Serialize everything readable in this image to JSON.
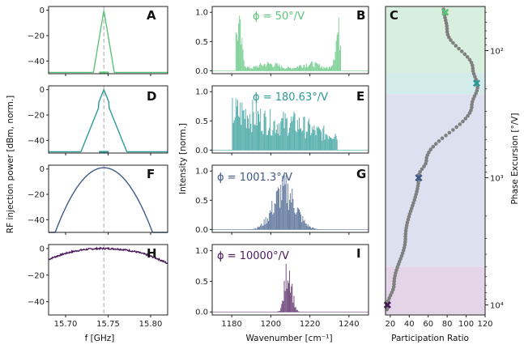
{
  "chart_data": {
    "type": "multi-panel",
    "y_label_left": "RF injection power [dBm, norm.]",
    "x_label_left": "f [GHz]",
    "y_label_mid": "Intensity [norm.]",
    "x_label_mid": "Wavenumber [cm⁻¹]",
    "x_label_right": "Participation Ratio",
    "y_label_right": "Phase Excursion [°/V]",
    "panels": [
      {
        "label": "A",
        "kind": "rf",
        "color": "#5cc47a",
        "width": 0.003,
        "floor": -49
      },
      {
        "label": "D",
        "kind": "rf",
        "color": "#2a9a96",
        "width": 0.006,
        "floor": -49
      },
      {
        "label": "F",
        "kind": "rf",
        "color": "#3f5a88",
        "width": 0.03,
        "floor": -49
      },
      {
        "label": "H",
        "kind": "rf",
        "color": "#4b1a5c",
        "width": 0.08,
        "floor": -49
      }
    ],
    "spectra": [
      {
        "label": "B",
        "phi": "ϕ = 50°/V",
        "color": "#5cc47a",
        "shape": "edges",
        "range": [
          1182,
          1236
        ]
      },
      {
        "label": "E",
        "phi": "ϕ = 180.63°/V",
        "color": "#2a9a96",
        "shape": "broad",
        "range": [
          1180,
          1234
        ]
      },
      {
        "label": "G",
        "phi": "ϕ = 1001.3°/V",
        "color": "#3f5a88",
        "shape": "gauss",
        "center": 1207,
        "sigma": 8
      },
      {
        "label": "I",
        "phi": "ϕ = 10000°/V",
        "color": "#4b1a5c",
        "shape": "narrow",
        "center": 1209,
        "sigma": 2.5
      }
    ],
    "rf_x_ticks": [
      "15.70",
      "15.75",
      "15.80"
    ],
    "rf_y_ticks": [
      "0",
      "−20",
      "−40"
    ],
    "spec_x_ticks": [
      "1180",
      "1200",
      "1220",
      "1240"
    ],
    "spec_y_ticks": [
      "0.0",
      "0.5",
      "1.0"
    ],
    "pr_x_ticks": [
      "20",
      "40",
      "60",
      "80",
      "100",
      "120"
    ],
    "pr_y_ticks": [
      "10²",
      "10³",
      "10⁴"
    ],
    "participation": {
      "label": "C",
      "x_range": [
        15,
        120
      ],
      "y_range_log": [
        45,
        12000
      ],
      "bands": [
        {
          "from": 45,
          "to": 150,
          "color": "#d8efdf"
        },
        {
          "from": 150,
          "to": 220,
          "color": "#d4ebeb"
        },
        {
          "from": 220,
          "to": 5000,
          "color": "#dde0ee"
        },
        {
          "from": 5000,
          "to": 12000,
          "color": "#e4d4e7"
        }
      ],
      "markers": [
        {
          "pr": 78,
          "phi": 50,
          "color": "#5cc47a"
        },
        {
          "pr": 111,
          "phi": 180.63,
          "color": "#2a9a96"
        },
        {
          "pr": 50,
          "phi": 1001.3,
          "color": "#3f5a88"
        },
        {
          "pr": 17,
          "phi": 10000,
          "color": "#4b1a5c"
        }
      ]
    }
  }
}
